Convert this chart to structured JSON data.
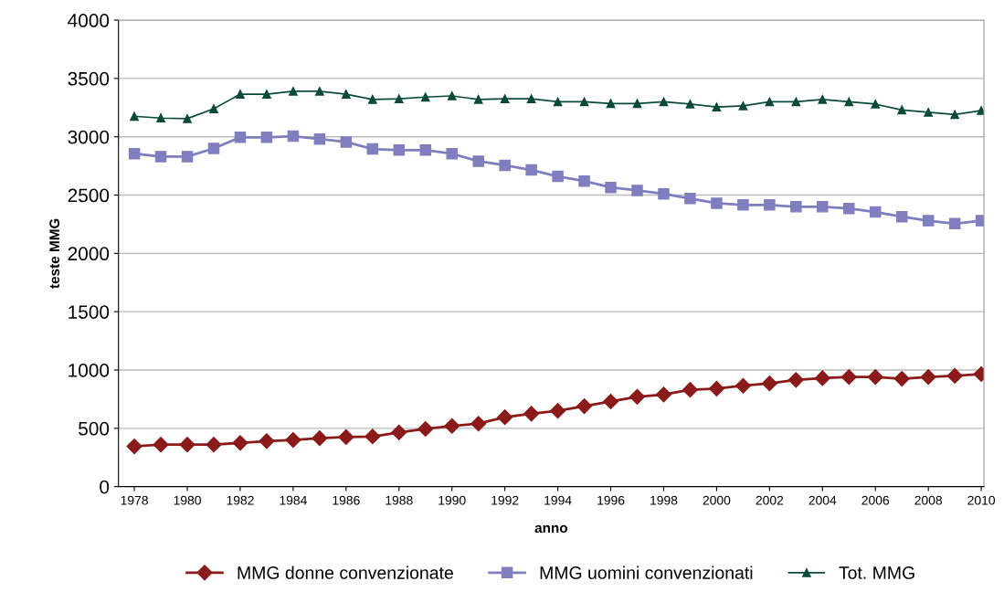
{
  "chart_data": {
    "type": "line",
    "xlabel": "anno",
    "ylabel": "teste MMG",
    "x": [
      1978,
      1979,
      1980,
      1981,
      1982,
      1983,
      1984,
      1985,
      1986,
      1987,
      1988,
      1989,
      1990,
      1991,
      1992,
      1993,
      1994,
      1995,
      1996,
      1997,
      1998,
      1999,
      2000,
      2001,
      2002,
      2003,
      2004,
      2005,
      2006,
      2007,
      2008,
      2009,
      2010
    ],
    "series": [
      {
        "name": "MMG donne convenzionate",
        "color": "#8b1a1a",
        "marker": "diamond",
        "values": [
          345,
          360,
          360,
          360,
          375,
          390,
          400,
          415,
          425,
          430,
          465,
          495,
          520,
          540,
          595,
          625,
          650,
          690,
          730,
          770,
          790,
          830,
          840,
          865,
          885,
          915,
          930,
          940,
          940,
          925,
          940,
          950,
          965
        ]
      },
      {
        "name": "MMG uomini convenzionati",
        "color": "#7f7fbf",
        "marker": "square",
        "values": [
          2855,
          2830,
          2830,
          2900,
          2995,
          2995,
          3005,
          2980,
          2955,
          2895,
          2885,
          2885,
          2855,
          2790,
          2755,
          2715,
          2660,
          2620,
          2565,
          2540,
          2510,
          2470,
          2430,
          2415,
          2415,
          2400,
          2400,
          2385,
          2355,
          2315,
          2280,
          2255,
          2280
        ]
      },
      {
        "name": "Tot. MMG",
        "color": "#0b4a3a",
        "marker": "triangle",
        "values": [
          3175,
          3160,
          3155,
          3240,
          3365,
          3365,
          3390,
          3390,
          3365,
          3320,
          3325,
          3340,
          3350,
          3320,
          3325,
          3325,
          3300,
          3300,
          3285,
          3285,
          3300,
          3280,
          3255,
          3265,
          3300,
          3300,
          3320,
          3300,
          3280,
          3230,
          3210,
          3190,
          3225
        ]
      }
    ],
    "xlim": [
      1977.4,
      2010.1
    ],
    "xticks": [
      1978,
      1980,
      1982,
      1984,
      1986,
      1988,
      1990,
      1992,
      1994,
      1996,
      1998,
      2000,
      2002,
      2004,
      2006,
      2008,
      2010
    ],
    "ylim": [
      0,
      4000
    ],
    "yticks": [
      0,
      500,
      1000,
      1500,
      2000,
      2500,
      3000,
      3500,
      4000
    ],
    "grid": "y",
    "legend": "bottom",
    "line_style": "solid"
  }
}
